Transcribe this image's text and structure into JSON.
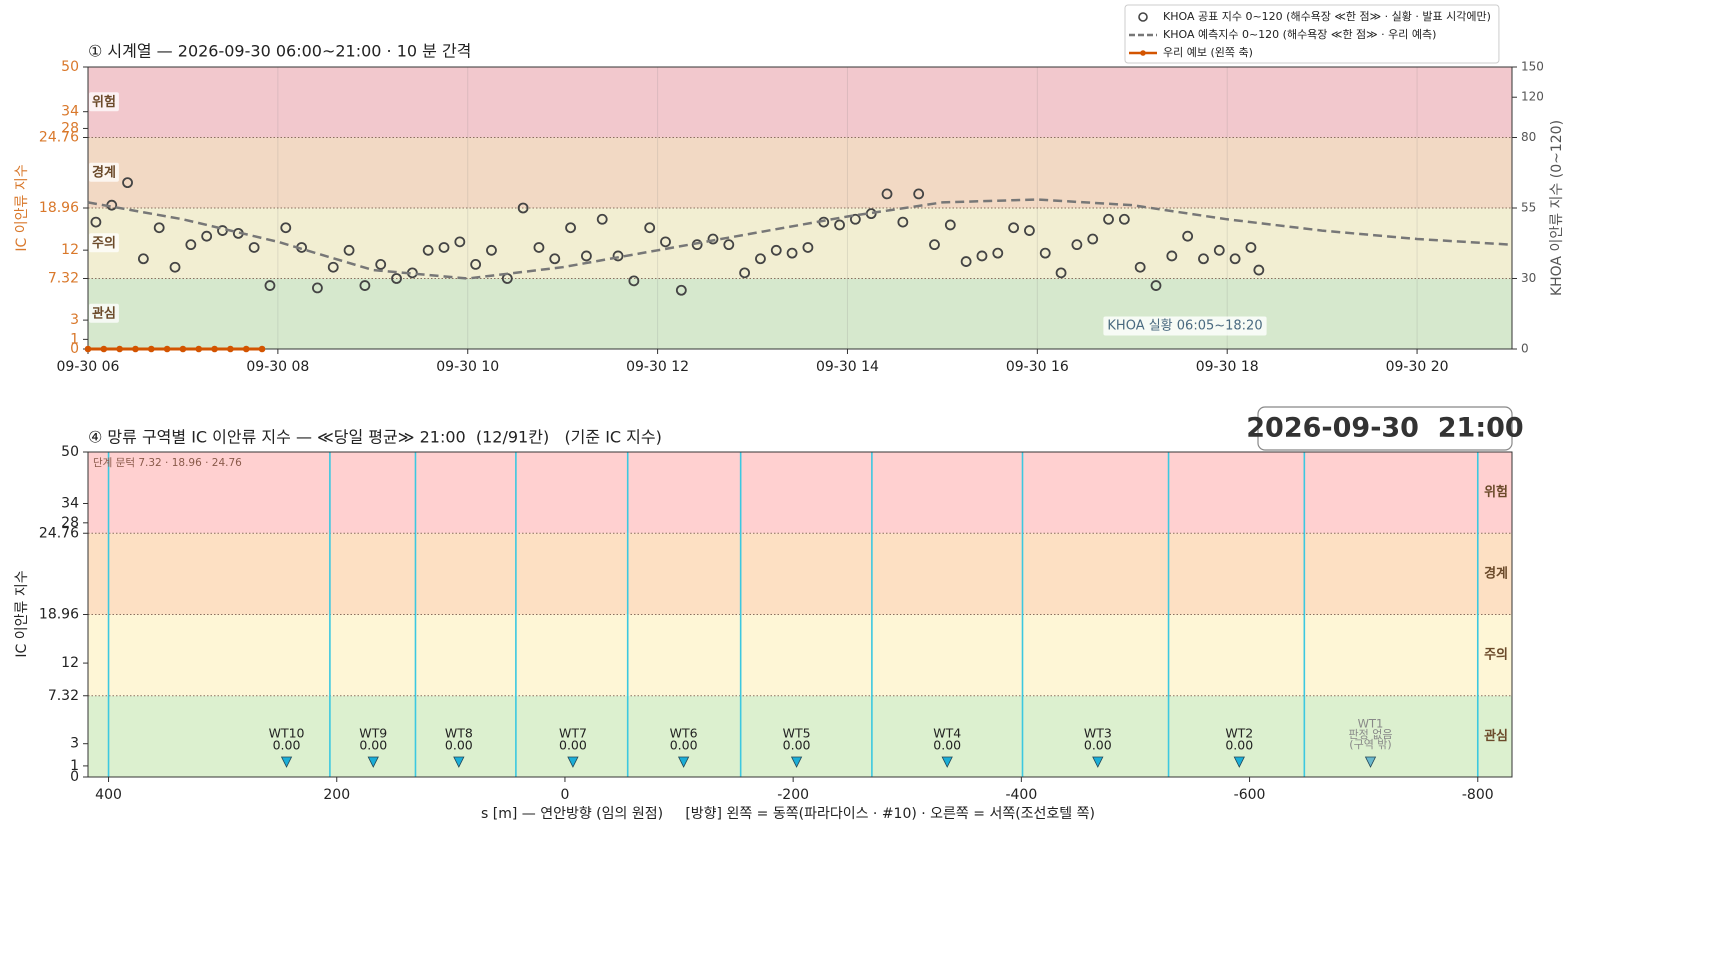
{
  "chart_data": [
    {
      "type": "line",
      "title": "① 시계열 — 2026-09-30 06:00~21:00 · 10 분 간격",
      "ylabel": "IC 이안류 지수",
      "y2label": "KHOA 이안류 지수 (0~120)",
      "ylim": [
        0,
        50
      ],
      "yticks": [
        0,
        1,
        3,
        7.32,
        12,
        18.96,
        24.76,
        28,
        34,
        50
      ],
      "y2lim": [
        0,
        150
      ],
      "y2ticks": [
        0,
        30,
        55,
        80,
        120,
        150
      ],
      "xlim": [
        "06:00",
        "21:00"
      ],
      "xticks": [
        {
          "value": "06:00",
          "label": "09-30 06"
        },
        {
          "value": "08:00",
          "label": "09-30 08"
        },
        {
          "value": "10:00",
          "label": "09-30 10"
        },
        {
          "value": "12:00",
          "label": "09-30 12"
        },
        {
          "value": "14:00",
          "label": "09-30 14"
        },
        {
          "value": "16:00",
          "label": "09-30 16"
        },
        {
          "value": "18:00",
          "label": "09-30 18"
        },
        {
          "value": "20:00",
          "label": "09-30 20"
        }
      ],
      "grid": true,
      "legend": "upper right",
      "bands": [
        {
          "name": "관심",
          "upper": 7.32,
          "color": "#d6e8cd"
        },
        {
          "name": "주의",
          "upper": 18.96,
          "color": "#f2eed2"
        },
        {
          "name": "경계",
          "upper": 24.76,
          "color": "#f2d9c4"
        },
        {
          "name": "위험",
          "color": "#f2c8cd"
        }
      ],
      "annotation": "KHOA 실황 06:05~18:20",
      "series": [
        {
          "name": "KHOA 공표 지수 0~120 (해수욕장 ≪한 점≫ · 실황 · 발표 시각에만)",
          "kind": "markers",
          "axis": "y2",
          "color": "#444444",
          "x": [
            "06:05",
            "06:15",
            "06:25",
            "06:35",
            "06:45",
            "06:55",
            "07:05",
            "07:15",
            "07:25",
            "07:35",
            "07:45",
            "07:55",
            "08:05",
            "08:15",
            "08:25",
            "08:35",
            "08:45",
            "08:55",
            "09:05",
            "09:15",
            "09:25",
            "09:35",
            "09:45",
            "09:55",
            "10:05",
            "10:15",
            "10:25",
            "10:35",
            "10:45",
            "10:55",
            "11:05",
            "11:15",
            "11:25",
            "11:35",
            "11:45",
            "11:55",
            "12:05",
            "12:15",
            "12:25",
            "12:35",
            "12:45",
            "12:55",
            "13:05",
            "13:15",
            "13:25",
            "13:35",
            "13:45",
            "13:55",
            "14:05",
            "14:15",
            "14:25",
            "14:35",
            "14:45",
            "14:55",
            "15:05",
            "15:15",
            "15:25",
            "15:35",
            "15:45",
            "15:55",
            "16:05",
            "16:15",
            "16:25",
            "16:35",
            "16:45",
            "16:55",
            "17:05",
            "17:15",
            "17:25",
            "17:35",
            "17:45",
            "17:55",
            "18:05",
            "18:15",
            "18:20"
          ],
          "values": [
            50,
            56,
            64,
            37,
            48,
            34,
            42,
            45,
            47,
            46,
            41,
            27,
            48,
            41,
            26,
            34,
            40,
            27,
            35,
            30,
            32,
            40,
            41,
            43,
            35,
            40,
            30,
            55,
            41,
            37,
            48,
            38,
            51,
            38,
            29,
            48,
            43,
            25,
            42,
            44,
            42,
            32,
            37,
            40,
            39,
            41,
            50,
            49,
            51,
            53,
            60,
            50,
            60,
            42,
            49,
            36,
            38,
            39,
            48,
            47,
            39,
            32,
            42,
            44,
            51,
            51,
            34,
            27,
            38,
            45,
            37,
            40,
            37,
            41,
            33
          ]
        },
        {
          "name": "KHOA 예측지수 0~120 (해수욕장 ≪한 점≫ · 우리 예측)",
          "kind": "dashed",
          "axis": "y2",
          "color": "#777777",
          "x": [
            "06:00",
            "07:00",
            "08:00",
            "09:00",
            "10:00",
            "11:00",
            "12:00",
            "13:00",
            "14:00",
            "15:00",
            "16:00",
            "17:00",
            "18:00",
            "19:00",
            "20:00",
            "21:00"
          ],
          "values": [
            57,
            51,
            43,
            33,
            30,
            34,
            40,
            46,
            52,
            57,
            58,
            56,
            51,
            47,
            44,
            42
          ]
        },
        {
          "name": "우리 예보 (왼쪽 축)",
          "kind": "line-markers",
          "axis": "y",
          "color": "#d35400",
          "x": [
            "06:00",
            "06:10",
            "06:20",
            "06:30",
            "06:40",
            "06:50",
            "07:00",
            "07:10",
            "07:20",
            "07:30",
            "07:40",
            "07:50"
          ],
          "values": [
            0,
            0,
            0,
            0,
            0,
            0,
            0,
            0,
            0,
            0,
            0,
            0
          ]
        }
      ]
    },
    {
      "type": "scatter",
      "title": "④ 망류 구역별 IC 이안류 지수 — ≪당일 평균≫ 21:00  (12/91칸)   (기준 IC 지수)",
      "timestamp": "2026-09-30  21:00",
      "note": "단계 문턱 7.32 · 18.96 · 24.76",
      "ylabel": "IC 이안류 지수",
      "xlabel": "s [m] — 연안방향 (임의 원점)     [방향] 왼쪽 = 동쪽(파라다이스 · #10) · 오른쪽 = 서쪽(조선호텔 쪽)",
      "ylim": [
        0,
        50
      ],
      "yticks": [
        0,
        1,
        3,
        7.32,
        12,
        18.96,
        24.76,
        28,
        34,
        50
      ],
      "xlim": [
        418,
        -830
      ],
      "xticks": [
        400,
        200,
        0,
        -200,
        -400,
        -600,
        -800
      ],
      "bands": [
        {
          "name": "관심",
          "upper": 7.32,
          "color": "#dcf0cf"
        },
        {
          "name": "주의",
          "upper": 18.96,
          "color": "#fef6d6"
        },
        {
          "name": "경계",
          "upper": 24.76,
          "color": "#fde0c3"
        },
        {
          "name": "위험",
          "color": "#ffd0d0"
        }
      ],
      "boundaries": [
        400,
        206,
        131,
        43,
        -55,
        -154,
        -269,
        -401,
        -529,
        -648,
        -800
      ],
      "boundary_color": "#3cc8e0",
      "marker_color": "#1aaed6",
      "stations": [
        {
          "name": "WT10",
          "s": 244,
          "value": 0,
          "value_label": "0.00"
        },
        {
          "name": "WT9",
          "s": 168,
          "value": 0,
          "value_label": "0.00"
        },
        {
          "name": "WT8",
          "s": 93,
          "value": 0,
          "value_label": "0.00"
        },
        {
          "name": "WT7",
          "s": -7,
          "value": 0,
          "value_label": "0.00"
        },
        {
          "name": "WT6",
          "s": -104,
          "value": 0,
          "value_label": "0.00"
        },
        {
          "name": "WT5",
          "s": -203,
          "value": 0,
          "value_label": "0.00"
        },
        {
          "name": "WT4",
          "s": -335,
          "value": 0,
          "value_label": "0.00"
        },
        {
          "name": "WT3",
          "s": -467,
          "value": 0,
          "value_label": "0.00"
        },
        {
          "name": "WT2",
          "s": -591,
          "value": 0,
          "value_label": "0.00"
        },
        {
          "name": "WT1",
          "s": -706,
          "value": null,
          "note": [
            "판정 없음",
            "(구역 밖)"
          ]
        }
      ]
    }
  ]
}
